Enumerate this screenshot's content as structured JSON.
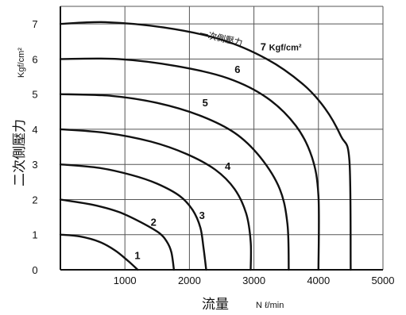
{
  "chart_data": {
    "type": "line",
    "xlabel": "流量",
    "xlabel_unit": "N ℓ/min",
    "ylabel": "二次側壓力",
    "ylabel_unit": "Kgf/cm²",
    "xlim": [
      0,
      5000
    ],
    "ylim": [
      0,
      7.5
    ],
    "x_ticks": [
      0,
      1000,
      2000,
      3000,
      4000,
      5000
    ],
    "x_tick_labels": [
      "",
      "1000",
      "2000",
      "3000",
      "4000",
      "5000"
    ],
    "y_ticks": [
      0,
      1,
      2,
      3,
      4,
      5,
      6,
      7
    ],
    "y_tick_labels": [
      "0",
      "1",
      "2",
      "3",
      "4",
      "5",
      "6",
      "7"
    ],
    "grid": true,
    "legend": "none",
    "series": [
      {
        "name": "1",
        "points": [
          [
            0,
            1.0
          ],
          [
            300,
            0.95
          ],
          [
            600,
            0.8
          ],
          [
            850,
            0.55
          ],
          [
            1050,
            0.25
          ],
          [
            1200,
            0.0
          ]
        ]
      },
      {
        "name": "2",
        "points": [
          [
            0,
            2.0
          ],
          [
            500,
            1.85
          ],
          [
            900,
            1.65
          ],
          [
            1250,
            1.35
          ],
          [
            1530,
            1.05
          ],
          [
            1650,
            0.8
          ],
          [
            1720,
            0.5
          ],
          [
            1760,
            0.0
          ]
        ]
      },
      {
        "name": "3",
        "points": [
          [
            0,
            3.0
          ],
          [
            600,
            2.9
          ],
          [
            1100,
            2.7
          ],
          [
            1500,
            2.45
          ],
          [
            1850,
            2.1
          ],
          [
            2050,
            1.7
          ],
          [
            2170,
            1.2
          ],
          [
            2220,
            0.6
          ],
          [
            2260,
            0.0
          ]
        ]
      },
      {
        "name": "4",
        "points": [
          [
            0,
            4.0
          ],
          [
            700,
            3.9
          ],
          [
            1400,
            3.65
          ],
          [
            1950,
            3.3
          ],
          [
            2400,
            2.85
          ],
          [
            2700,
            2.3
          ],
          [
            2880,
            1.6
          ],
          [
            2950,
            0.8
          ],
          [
            2950,
            0.0
          ]
        ]
      },
      {
        "name": "5",
        "points": [
          [
            0,
            5.0
          ],
          [
            800,
            4.95
          ],
          [
            1500,
            4.75
          ],
          [
            2150,
            4.4
          ],
          [
            2700,
            3.9
          ],
          [
            3100,
            3.2
          ],
          [
            3400,
            2.3
          ],
          [
            3520,
            1.3
          ],
          [
            3540,
            0.0
          ]
        ]
      },
      {
        "name": "6",
        "points": [
          [
            0,
            6.0
          ],
          [
            900,
            6.0
          ],
          [
            1800,
            5.8
          ],
          [
            2600,
            5.45
          ],
          [
            3200,
            4.9
          ],
          [
            3650,
            4.1
          ],
          [
            3900,
            3.2
          ],
          [
            4000,
            2.1
          ],
          [
            4000,
            0.0
          ]
        ]
      },
      {
        "name": "7",
        "points": [
          [
            0,
            7.0
          ],
          [
            700,
            7.05
          ],
          [
            1600,
            6.9
          ],
          [
            2500,
            6.55
          ],
          [
            3200,
            6.0
          ],
          [
            3750,
            5.3
          ],
          [
            4100,
            4.6
          ],
          [
            4350,
            3.8
          ],
          [
            4480,
            3.1
          ],
          [
            4500,
            0.0
          ]
        ]
      }
    ],
    "annotations": [
      {
        "text": "一次側壓力",
        "x": 2150,
        "y": 6.65,
        "rotate": 13
      },
      {
        "text": "7 Kgf/cm²",
        "x": 3100,
        "y": 6.25
      },
      {
        "text": "1",
        "x": 1150,
        "y": 0.3
      },
      {
        "text": "2",
        "x": 1400,
        "y": 1.25
      },
      {
        "text": "3",
        "x": 2150,
        "y": 1.45
      },
      {
        "text": "4",
        "x": 2550,
        "y": 2.85
      },
      {
        "text": "5",
        "x": 2200,
        "y": 4.65
      },
      {
        "text": "6",
        "x": 2700,
        "y": 5.6
      }
    ]
  }
}
